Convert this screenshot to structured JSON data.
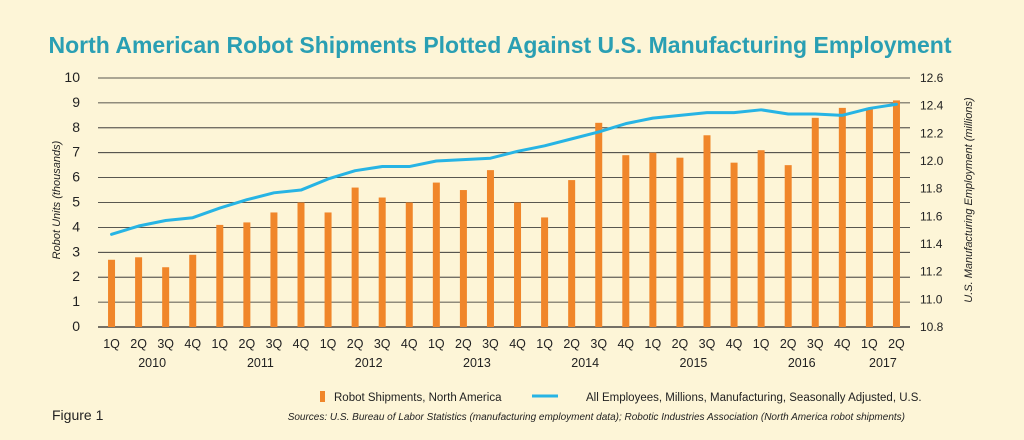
{
  "figure_label": "Figure 1",
  "sources": "Sources: U.S. Bureau of Labor Statistics (manufacturing employment data); Robotic Industries Association (North America robot shipments)",
  "colors": {
    "bars": "#f0862a",
    "line": "#27b4e4",
    "grid": "#222222",
    "title": "#2a9fb3",
    "background": "#fdf5d7"
  },
  "chart_data": {
    "type": "bar",
    "title": "North American Robot Shipments Plotted Against U.S. Manufacturing Employment",
    "ylabel": "Robot Units (thousands)",
    "y2label": "U.S. Manufacturing Employment (millions)",
    "ylim": [
      0,
      10
    ],
    "y2lim": [
      10.8,
      12.6
    ],
    "yticks": [
      "0",
      "1",
      "2",
      "3",
      "4",
      "5",
      "6",
      "7",
      "8",
      "9",
      "10"
    ],
    "y2ticks": [
      "10.8",
      "11.0",
      "11.2",
      "11.4",
      "11.6",
      "11.8",
      "12.0",
      "12.2",
      "12.4",
      "12.6"
    ],
    "categories": [
      "1Q",
      "2Q",
      "3Q",
      "4Q",
      "1Q",
      "2Q",
      "3Q",
      "4Q",
      "1Q",
      "2Q",
      "3Q",
      "4Q",
      "1Q",
      "2Q",
      "3Q",
      "4Q",
      "1Q",
      "2Q",
      "3Q",
      "4Q",
      "1Q",
      "2Q",
      "3Q",
      "4Q",
      "1Q",
      "2Q",
      "3Q",
      "4Q",
      "1Q",
      "2Q"
    ],
    "years": [
      {
        "label": "2010",
        "start": 0,
        "end": 3
      },
      {
        "label": "2011",
        "start": 4,
        "end": 7
      },
      {
        "label": "2012",
        "start": 8,
        "end": 11
      },
      {
        "label": "2013",
        "start": 12,
        "end": 15
      },
      {
        "label": "2014",
        "start": 16,
        "end": 19
      },
      {
        "label": "2015",
        "start": 20,
        "end": 23
      },
      {
        "label": "2016",
        "start": 24,
        "end": 27
      },
      {
        "label": "2017",
        "start": 28,
        "end": 29
      }
    ],
    "grid": true,
    "legend_position": "bottom",
    "series": [
      {
        "name": "Robot Shipments, North America",
        "type": "bar",
        "axis": "left",
        "values": [
          2.7,
          2.8,
          2.4,
          2.9,
          4.1,
          4.2,
          4.6,
          5.0,
          4.6,
          5.6,
          5.2,
          5.0,
          5.8,
          5.5,
          6.3,
          5.0,
          4.4,
          5.9,
          8.2,
          6.9,
          7.0,
          6.8,
          7.7,
          6.6,
          7.1,
          6.5,
          8.4,
          8.8,
          8.8,
          9.1
        ]
      },
      {
        "name": "All Employees, Millions, Manufacturing, Seasonally Adjusted, U.S.",
        "type": "line",
        "axis": "right",
        "values": [
          11.47,
          11.53,
          11.57,
          11.59,
          11.66,
          11.72,
          11.77,
          11.79,
          11.87,
          11.93,
          11.96,
          11.96,
          12.0,
          12.01,
          12.02,
          12.07,
          12.11,
          12.16,
          12.21,
          12.27,
          12.31,
          12.33,
          12.35,
          12.35,
          12.37,
          12.34,
          12.34,
          12.33,
          12.38,
          12.41
        ]
      }
    ]
  }
}
